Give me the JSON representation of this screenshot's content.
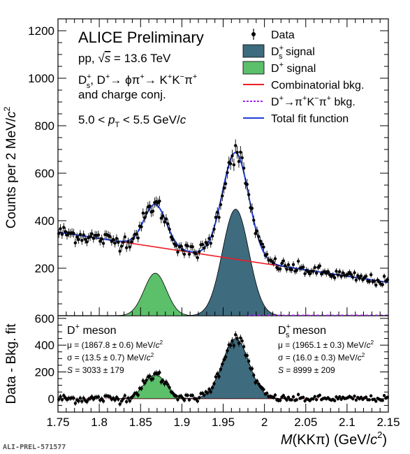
{
  "texts": {
    "title": "ALICE Preliminary",
    "system_prefix": "pp, ",
    "system_sqrt": "√",
    "system_s": "s",
    "system_energy": " = 13.6 TeV",
    "decay_line1": "D",
    "decay_line1_sup": "+",
    "decay_line1_sub": "s",
    "decay_line1_rest": ", D",
    "decay_line1_sup2": "+",
    "decay_line1_chain": "→ ϕπ",
    "decay_line1_sup3": "+",
    "decay_line1_chain2": "→ K",
    "decay_line1_sup4": "+",
    "decay_line1_k": "K",
    "decay_line1_sup5": "−",
    "decay_line1_pi": "π",
    "decay_line1_sup6": "+",
    "decay_line2": "and charge conj.",
    "pt_low": "5.0 < ",
    "pt_p": "p",
    "pt_sub": "T",
    "pt_high": " < 5.5 GeV/",
    "pt_c": "c",
    "ylabel_top": "Counts per 2 MeV/",
    "ylabel_top_c": "c",
    "ylabel_top_sup": "2",
    "ylabel_bottom": "Data - Bkg. fit",
    "xlabel_M": "M",
    "xlabel_rest": "(KKπ) (GeV/",
    "xlabel_c": "c",
    "xlabel_sup": "2",
    "xlabel_close": ")",
    "footer": "ALI-PREL-571577"
  },
  "legend": [
    {
      "label": "Data",
      "style": "data"
    },
    {
      "label": "D",
      "sup": "+",
      "sub": "s",
      "tail": " signal",
      "style": "fill",
      "color": "#3e6b7e"
    },
    {
      "label": "D",
      "sup": "+",
      "sub": "",
      "tail": " signal",
      "style": "fill",
      "color": "#5cbf6a"
    },
    {
      "label": "Combinatorial bkg.",
      "style": "line",
      "color": "#ee1c24"
    },
    {
      "label": "D",
      "sup": "+",
      "tail": "→π",
      "sup2": "+",
      "tail2": "K",
      "sup3": "−",
      "tail3": "π",
      "sup4": "+",
      "tail4": " bkg.",
      "style": "dashed",
      "color": "#a020f0"
    },
    {
      "label": "Total fit function",
      "style": "line",
      "color": "#1f3fd6"
    }
  ],
  "lower_panel": {
    "left": {
      "title": "D",
      "title_sup": "+",
      "title_rest": " meson",
      "mu": "μ = (1867.8 ± 0.6) MeV/",
      "sigma": "σ = (13.5 ± 0.7) MeV/",
      "s_label": "S",
      "s_value": " = 3033 ± 179",
      "unit_c": "c",
      "unit_sup": "2"
    },
    "right": {
      "title": "D",
      "title_sup": "+",
      "title_sub": "s",
      "title_rest": " meson",
      "mu": "μ = (1965.1 ± 0.3) MeV/",
      "sigma": "σ = (16.0 ± 0.3) MeV/",
      "s_label": "S",
      "s_value": " = 8999 ± 209",
      "unit_c": "c",
      "unit_sup": "2"
    }
  },
  "colors": {
    "ds_signal": "#3e6b7e",
    "dplus_signal": "#5cbf6a",
    "combinatorial": "#ee1c24",
    "reflection": "#a020f0",
    "total": "#1f3fd6",
    "data": "#000000"
  },
  "chart_data": [
    {
      "panel": "upper",
      "type": "scatter",
      "xlim": [
        1.75,
        2.15
      ],
      "ylim": [
        0,
        1250
      ],
      "yticks": [
        200,
        400,
        600,
        800,
        1000,
        1200
      ],
      "bin_width": 0.002,
      "background": {
        "model": "linear",
        "value_at_1_75": 352,
        "value_at_2_15": 140
      },
      "signals": [
        {
          "name": "D+ signal",
          "mean": 1.8678,
          "sigma": 0.0135,
          "yield": 3033
        },
        {
          "name": "Ds+ signal",
          "mean": 1.9651,
          "sigma": 0.016,
          "yield": 8999
        }
      ],
      "reflection": {
        "start": 1.98,
        "level": 2
      },
      "data_points": "200 bins of 2 MeV following total fit with statistical fluctuation"
    },
    {
      "panel": "lower",
      "type": "scatter",
      "xlim": [
        1.75,
        2.15
      ],
      "ylim": [
        -100,
        620
      ],
      "yticks": [
        0,
        200,
        400,
        600
      ],
      "xticks": [
        1.75,
        1.8,
        1.85,
        1.9,
        1.95,
        2,
        2.05,
        2.1,
        2.15
      ],
      "xtick_labels": [
        "1.75",
        "1.8",
        "1.85",
        "1.9",
        "1.95",
        "2",
        "2.05",
        "2.1",
        "2.15"
      ]
    }
  ]
}
